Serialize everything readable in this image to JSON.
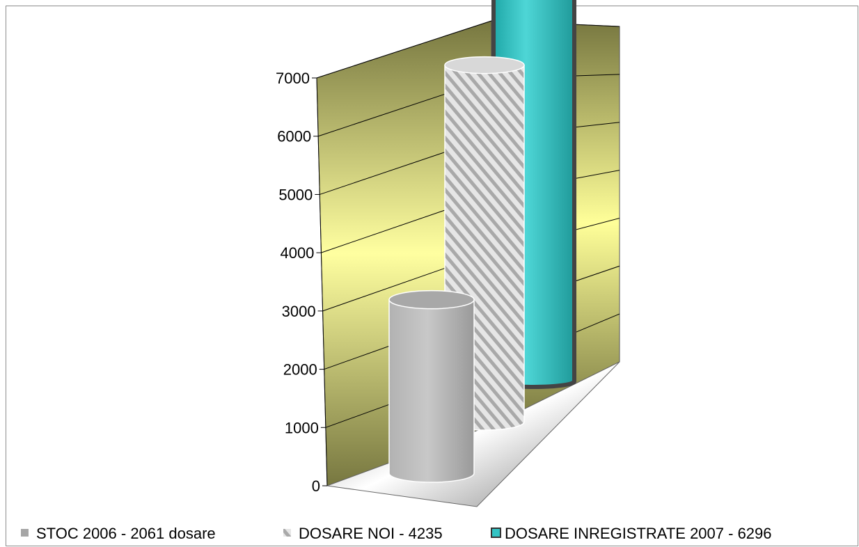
{
  "chart_data": {
    "type": "bar",
    "style": "3d-cylinder",
    "categories": [
      "STOC  2006 - 2061 dosare",
      "DOSARE NOI - 4235",
      "DOSARE INREGISTRATE 2007 - 6296"
    ],
    "series": [
      {
        "name": "STOC  2006 - 2061 dosare",
        "value": 2061,
        "color": "#a6a6a6",
        "pattern": "solid-gray"
      },
      {
        "name": "DOSARE NOI - 4235",
        "value": 4235,
        "color": "#cfcfcf",
        "pattern": "diagonal-stripes"
      },
      {
        "name": "DOSARE INREGISTRATE 2007 - 6296",
        "value": 6296,
        "color": "#33c4c4",
        "pattern": "dark-outline"
      }
    ],
    "title": "",
    "xlabel": "",
    "ylabel": "",
    "ylim": [
      0,
      7000
    ],
    "yticks": [
      0,
      1000,
      2000,
      3000,
      4000,
      5000,
      6000,
      7000
    ],
    "ytick_labels": [
      "0",
      "1000",
      "2000",
      "3000",
      "4000",
      "5000",
      "6000",
      "7000"
    ],
    "grid": true,
    "legend_position": "bottom",
    "wall_color": "#ffff99"
  }
}
